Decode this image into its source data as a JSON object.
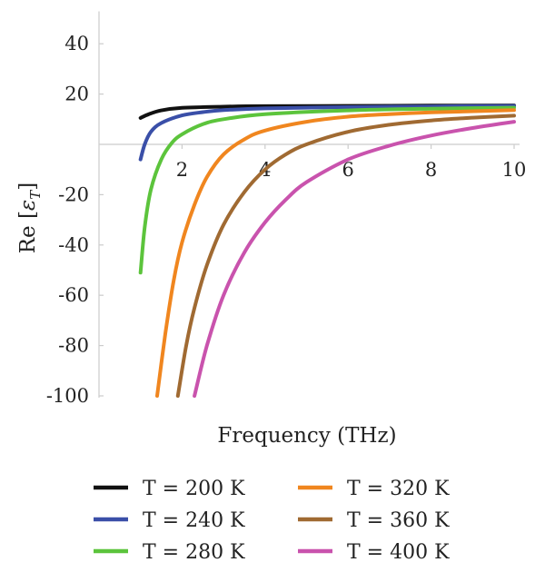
{
  "chart_data": {
    "type": "line",
    "title": "",
    "xlabel": "Frequency (THz)",
    "ylabel_main": "Re [",
    "ylabel_symbol": "ε",
    "ylabel_subscript": "T",
    "ylabel_close": "]",
    "xlim": [
      0,
      10
    ],
    "ylim": [
      -100,
      50
    ],
    "x_ticks": [
      {
        "value": 2,
        "label": "2"
      },
      {
        "value": 4,
        "label": "4"
      },
      {
        "value": 6,
        "label": "6"
      },
      {
        "value": 8,
        "label": "8"
      },
      {
        "value": 10,
        "label": "10"
      }
    ],
    "y_ticks": [
      {
        "value": 40,
        "label": "40"
      },
      {
        "value": 20,
        "label": "20"
      },
      {
        "value": -20,
        "label": "-20"
      },
      {
        "value": -40,
        "label": "-40"
      },
      {
        "value": -60,
        "label": "-60"
      },
      {
        "value": -80,
        "label": "-80"
      },
      {
        "value": -100,
        "label": "-100"
      }
    ],
    "grid": false,
    "legend_position": "bottom",
    "series": [
      {
        "name": "T = 200 K",
        "color": "#111111",
        "x": [
          1.0,
          1.2,
          1.5,
          2.0,
          3.0,
          4.0,
          6.0,
          8.0,
          10.0
        ],
        "y": [
          10.5,
          12.0,
          13.5,
          14.5,
          15.0,
          15.2,
          15.3,
          15.4,
          15.5
        ]
      },
      {
        "name": "T = 240 K",
        "color": "#3a4fa8",
        "x": [
          1.0,
          1.1,
          1.25,
          1.5,
          2.0,
          2.5,
          3.0,
          4.0,
          6.0,
          8.0,
          10.0
        ],
        "y": [
          -6.0,
          0.0,
          5.0,
          8.5,
          11.5,
          12.8,
          13.6,
          14.3,
          14.8,
          15.1,
          15.3
        ]
      },
      {
        "name": "T = 280 K",
        "color": "#5cc43c",
        "x": [
          1.0,
          1.1,
          1.25,
          1.5,
          1.75,
          2.0,
          2.5,
          3.0,
          4.0,
          6.0,
          8.0,
          10.0
        ],
        "y": [
          -51.0,
          -33.0,
          -18.0,
          -6.0,
          0.5,
          4.0,
          8.0,
          10.0,
          12.0,
          13.5,
          14.2,
          14.6
        ]
      },
      {
        "name": "T = 320 K",
        "color": "#f0861f",
        "x": [
          1.4,
          1.6,
          1.8,
          2.0,
          2.3,
          2.6,
          3.0,
          3.5,
          4.0,
          5.0,
          6.0,
          7.0,
          8.0,
          10.0
        ],
        "y": [
          -100.0,
          -75.0,
          -54.0,
          -39.0,
          -24.0,
          -13.0,
          -4.0,
          2.0,
          5.5,
          9.0,
          11.0,
          12.0,
          12.7,
          13.6
        ]
      },
      {
        "name": "T = 360 K",
        "color": "#a06a32",
        "x": [
          1.9,
          2.1,
          2.3,
          2.6,
          3.0,
          3.5,
          4.0,
          4.5,
          5.0,
          6.0,
          7.0,
          8.0,
          9.0,
          10.0
        ],
        "y": [
          -100.0,
          -80.0,
          -65.0,
          -48.0,
          -32.0,
          -19.0,
          -10.0,
          -4.0,
          0.0,
          5.0,
          7.8,
          9.5,
          10.6,
          11.4
        ]
      },
      {
        "name": "T = 400 K",
        "color": "#c953ad",
        "x": [
          2.3,
          2.6,
          3.0,
          3.5,
          4.0,
          4.5,
          5.0,
          6.0,
          7.0,
          8.0,
          9.0,
          10.0
        ],
        "y": [
          -100.0,
          -80.0,
          -60.0,
          -43.0,
          -31.0,
          -22.0,
          -15.0,
          -6.0,
          -0.5,
          3.5,
          6.5,
          9.0
        ]
      }
    ]
  }
}
